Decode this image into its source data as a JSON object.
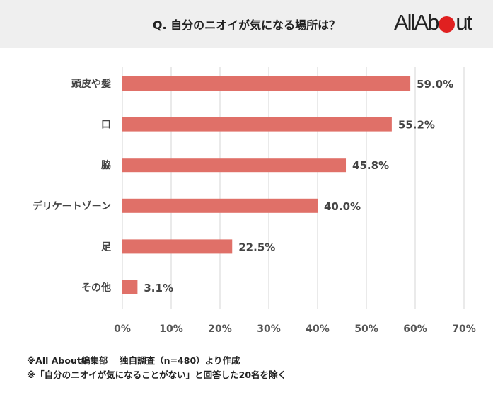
{
  "header": {
    "title": "Q. 自分のニオイが気になる場所は？",
    "logo_text": "All About"
  },
  "chart_data": {
    "type": "bar",
    "orientation": "horizontal",
    "title": "Q. 自分のニオイが気になる場所は？",
    "categories": [
      "頭皮や髪",
      "口",
      "脇",
      "デリケートゾーン",
      "足",
      "その他"
    ],
    "values": [
      59.0,
      55.2,
      45.8,
      40.0,
      22.5,
      3.1
    ],
    "data_labels": [
      "59.0%",
      "55.2%",
      "45.8%",
      "40.0%",
      "22.5%",
      "3.1%"
    ],
    "xlim": [
      0,
      70
    ],
    "ticks": [
      "0%",
      "10%",
      "20%",
      "30%",
      "40%",
      "50%",
      "60%",
      "70%"
    ],
    "grid": true,
    "bar_color": "#e07068"
  },
  "notes": [
    "※All About編集部　 独自調査（n=480）より作成",
    "※「自分のニオイが気になることがない」と回答した20名を除く"
  ]
}
